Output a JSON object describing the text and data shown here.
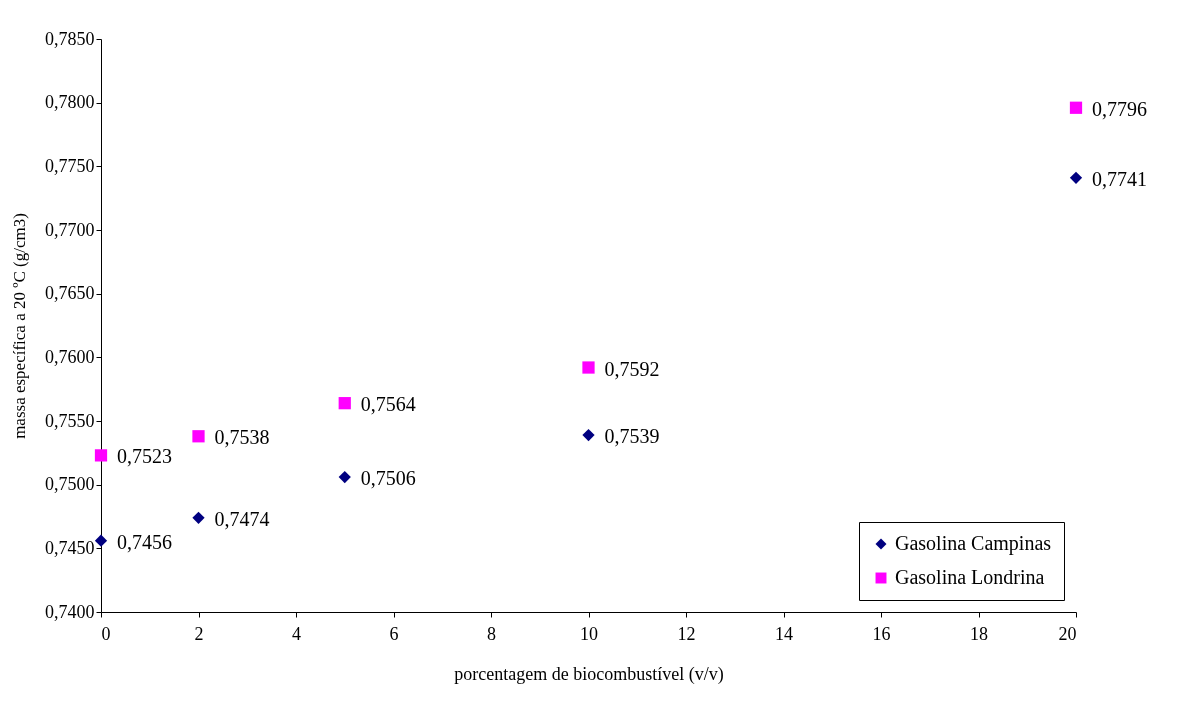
{
  "chart_data": {
    "type": "scatter",
    "x": [
      0,
      2,
      5,
      10,
      20
    ],
    "series": [
      {
        "name": "Gasolina Campinas",
        "color": "#000080",
        "marker": "diamond",
        "values": [
          0.7456,
          0.7474,
          0.7506,
          0.7539,
          0.7741
        ],
        "value_labels": [
          "0,7456",
          "0,7474",
          "0,7506",
          "0,7539",
          "0,7741"
        ]
      },
      {
        "name": "Gasolina Londrina",
        "color": "#ff00ff",
        "marker": "square",
        "values": [
          0.7523,
          0.7538,
          0.7564,
          0.7592,
          0.7796
        ],
        "value_labels": [
          "0,7523",
          "0,7538",
          "0,7564",
          "0,7592",
          "0,7796"
        ]
      }
    ],
    "xlabel": "porcentagem de biocombustível  (v/v)",
    "ylabel": "massa específica a 20 ºC (g/cm3)",
    "xlim": [
      0,
      20
    ],
    "xticks": [
      0,
      2,
      4,
      6,
      8,
      10,
      12,
      14,
      16,
      18,
      20
    ],
    "ylim": [
      0.74,
      0.785
    ],
    "yticks": [
      {
        "value": 0.74,
        "label": "0,7400"
      },
      {
        "value": 0.745,
        "label": "0,7450"
      },
      {
        "value": 0.75,
        "label": "0,7500"
      },
      {
        "value": 0.755,
        "label": "0,7550"
      },
      {
        "value": 0.76,
        "label": "0,7600"
      },
      {
        "value": 0.765,
        "label": "0,7650"
      },
      {
        "value": 0.77,
        "label": "0,7700"
      },
      {
        "value": 0.775,
        "label": "0,7750"
      },
      {
        "value": 0.78,
        "label": "0,7800"
      },
      {
        "value": 0.785,
        "label": "0,7850"
      }
    ],
    "legend": "bottom right",
    "grid": false
  }
}
